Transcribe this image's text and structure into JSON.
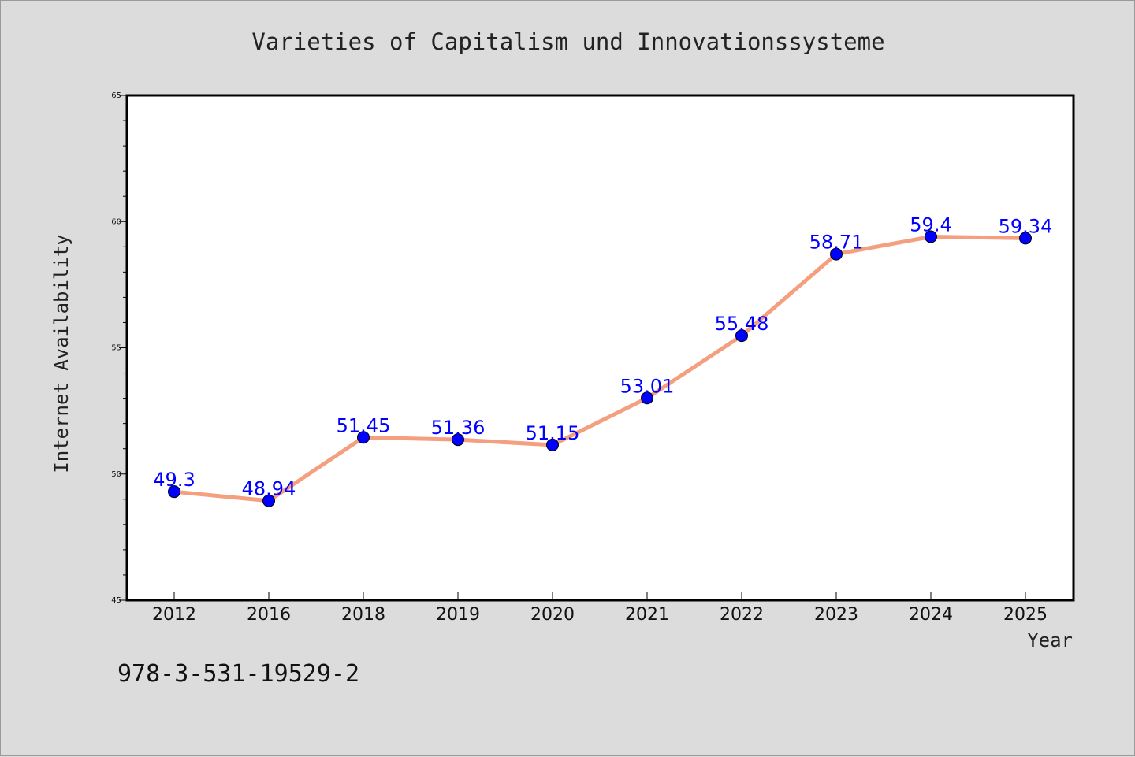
{
  "chart_data": {
    "type": "line",
    "title": "Varieties of Capitalism und Innovationssysteme",
    "xlabel": "Year",
    "ylabel": "Internet Availability",
    "categories": [
      "2012",
      "2016",
      "2018",
      "2019",
      "2020",
      "2021",
      "2022",
      "2023",
      "2024",
      "2025"
    ],
    "series": [
      {
        "values": [
          49.3,
          48.94,
          51.45,
          51.36,
          51.15,
          53.01,
          55.48,
          58.71,
          59.4,
          59.34
        ],
        "data_labels": [
          "49.3",
          "48.94",
          "51.45",
          "51.36",
          "51.15",
          "53.01",
          "55.48",
          "58.71",
          "59.4",
          "59.34"
        ],
        "line_color": "#f4a080",
        "marker_color": "#0000ff",
        "label_color": "#0000ff"
      }
    ],
    "ylim": [
      45,
      65
    ],
    "yticks": [
      "45",
      "50",
      "55",
      "60",
      "65"
    ],
    "grid": false,
    "legend": "none"
  },
  "footnote": "978-3-531-19529-2",
  "colors": {
    "background": "#dcdcdc",
    "plot_background": "#ffffff",
    "axis": "#000000"
  }
}
